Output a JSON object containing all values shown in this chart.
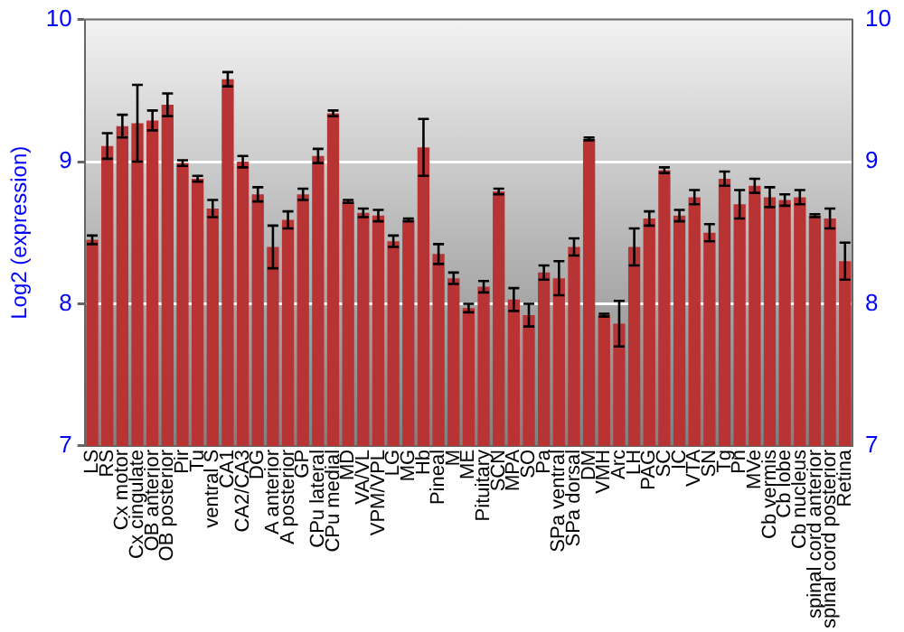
{
  "chart_data": {
    "type": "bar",
    "ylabel": "Log2 (expression)",
    "categories": [
      "LS",
      "RS",
      "Cx motor",
      "Cx cingulate",
      "OB anterior",
      "OB posterior",
      "Pir",
      "Tu",
      "ventral S",
      "CA1",
      "CA2/CA3",
      "DG",
      "A anterior",
      "A posterior",
      "GP",
      "CPu lateral",
      "CPu medial",
      "MD",
      "VA/VL",
      "VPM/VPL",
      "LG",
      "MG",
      "Hb",
      "Pineal",
      "M",
      "ME",
      "Pituitary",
      "SCN",
      "MPA",
      "SO",
      "Pa",
      "SPa ventral",
      "SPa dorsal",
      "DM",
      "VMH",
      "Arc",
      "LH",
      "PAG",
      "SC",
      "IC",
      "VTA",
      "SN",
      "Tg",
      "Pn",
      "MVe",
      "Cb vermis",
      "Cb lobe",
      "Cb nucleus",
      "spinal cord anterior",
      "spinal cord posterior",
      "Retina"
    ],
    "series": [
      {
        "color": "#b83434",
        "values": [
          8.45,
          9.11,
          9.25,
          9.27,
          9.29,
          9.4,
          8.99,
          8.88,
          8.67,
          9.58,
          9.0,
          8.77,
          8.4,
          8.59,
          8.77,
          9.04,
          9.34,
          8.72,
          8.64,
          8.62,
          8.44,
          8.59,
          9.1,
          8.35,
          8.18,
          7.97,
          8.12,
          8.79,
          8.03,
          7.92,
          8.22,
          8.18,
          8.4,
          9.16,
          7.92,
          7.86,
          8.4,
          8.6,
          8.94,
          8.62,
          8.75,
          8.5,
          8.88,
          8.7,
          8.83,
          8.75,
          8.73,
          8.75,
          8.62,
          8.6,
          8.3
        ],
        "errors": [
          0.03,
          0.09,
          0.08,
          0.27,
          0.07,
          0.08,
          0.02,
          0.02,
          0.06,
          0.05,
          0.04,
          0.05,
          0.15,
          0.06,
          0.04,
          0.05,
          0.02,
          0.01,
          0.03,
          0.04,
          0.04,
          0.01,
          0.2,
          0.07,
          0.04,
          0.03,
          0.04,
          0.02,
          0.08,
          0.08,
          0.05,
          0.12,
          0.06,
          0.01,
          0.01,
          0.16,
          0.13,
          0.05,
          0.02,
          0.04,
          0.05,
          0.06,
          0.05,
          0.1,
          0.05,
          0.07,
          0.04,
          0.05,
          0.01,
          0.07,
          0.13
        ]
      }
    ],
    "ylim": [
      7,
      10
    ],
    "yticks": [
      7,
      8,
      9,
      10
    ],
    "y2lim": [
      7,
      10
    ],
    "y2ticks": [
      7,
      8,
      9,
      10
    ],
    "grid": "y",
    "legend": false
  }
}
